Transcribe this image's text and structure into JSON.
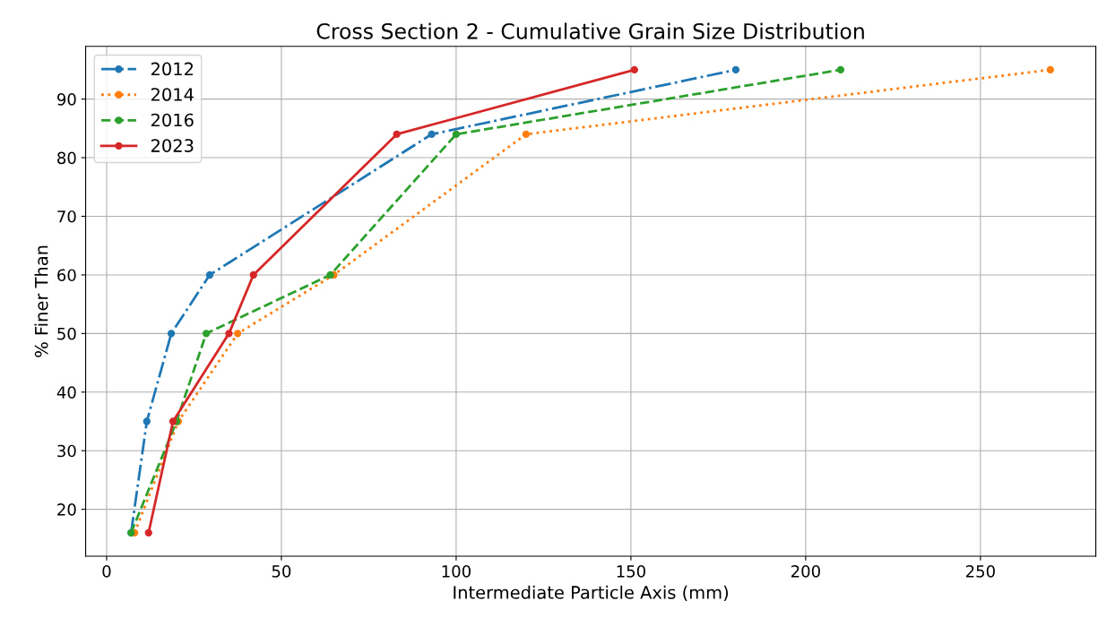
{
  "chart_data": {
    "type": "line",
    "title": "Cross Section 2 - Cumulative Grain Size Distribution",
    "xlabel": "Intermediate Particle Axis (mm)",
    "ylabel": "% Finer Than",
    "xlim": [
      -6,
      283
    ],
    "xticks": [
      0,
      50,
      100,
      150,
      200,
      250
    ],
    "ylim": [
      12,
      99
    ],
    "yticks": [
      20,
      30,
      40,
      50,
      60,
      70,
      80,
      90
    ],
    "grid": true,
    "legend": "top left",
    "marker": "circle",
    "series": [
      {
        "name": "2012",
        "color": "#1f77b4",
        "line_style": "dashdot",
        "x": [
          7,
          11.5,
          18.5,
          29.5,
          93,
          180
        ],
        "values": [
          16,
          35,
          50,
          60,
          84,
          95
        ]
      },
      {
        "name": "2014",
        "color": "#ff7f0e",
        "line_style": "dotted",
        "x": [
          8,
          20.5,
          37.5,
          65,
          120,
          270
        ],
        "values": [
          16,
          35,
          50,
          60,
          84,
          95
        ]
      },
      {
        "name": "2016",
        "color": "#2ca02c",
        "line_style": "dashed",
        "x": [
          7,
          20,
          28.5,
          64,
          100,
          210
        ],
        "values": [
          16,
          35,
          50,
          60,
          84,
          95
        ]
      },
      {
        "name": "2023",
        "color": "#d62728",
        "line_style": "solid",
        "x": [
          12,
          19,
          35,
          42,
          83,
          151
        ],
        "values": [
          16,
          35,
          50,
          60,
          84,
          95
        ]
      }
    ]
  }
}
